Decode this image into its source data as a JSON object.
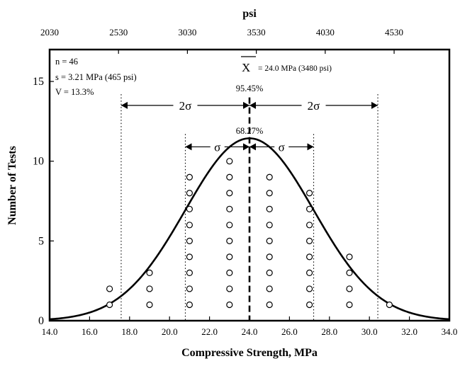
{
  "chart_data": {
    "type": "scatter",
    "title": "",
    "xlabel": "Compressive Strength, MPa",
    "x2label": "psi",
    "ylabel": "Number of Tests",
    "xlim": [
      14.0,
      34.0
    ],
    "ylim": [
      0,
      17
    ],
    "x_ticks": [
      14.0,
      16.0,
      18.0,
      20.0,
      22.0,
      24.0,
      26.0,
      28.0,
      30.0,
      32.0,
      34.0
    ],
    "x_tick_labels": [
      "14.0",
      "16.0",
      "18.0",
      "20.0",
      "22.0",
      "24.0",
      "26.0",
      "28.0",
      "30.0",
      "32.0",
      "34.0"
    ],
    "x2_ticks_mpa": [
      14.0,
      17.447,
      20.894,
      24.342,
      27.789,
      31.236
    ],
    "x2_tick_labels": [
      "2030",
      "2530",
      "3030",
      "3530",
      "4030",
      "4530"
    ],
    "y_ticks": [
      0,
      5,
      10,
      15
    ],
    "y_tick_labels": [
      "0",
      "5",
      "10",
      "15"
    ],
    "stats": {
      "n": "n = 46",
      "s": "s = 3.21 MPa (465 psi)",
      "v": "V = 13.3%"
    },
    "mean": {
      "value": 24.0,
      "symbol": "X",
      "label": "= 24.0 MPa  (3480 psi)"
    },
    "std": 3.21,
    "n": 46,
    "bin_width": 2.0,
    "points": [
      {
        "x": 17,
        "counts": 2
      },
      {
        "x": 19,
        "counts": 3
      },
      {
        "x": 21,
        "counts": 9
      },
      {
        "x": 23,
        "counts": 10
      },
      {
        "x": 25,
        "counts": 9
      },
      {
        "x": 27,
        "counts": 8
      },
      {
        "x": 29,
        "counts": 4
      },
      {
        "x": 31,
        "counts": 1
      }
    ],
    "sigma_lines": [
      17.58,
      20.79,
      27.21,
      30.42
    ],
    "annotations": {
      "two_sigma_pct": "95.45%",
      "one_sigma_pct": "68.27%",
      "two_sigma_label": "2σ",
      "one_sigma_label": "σ"
    }
  }
}
